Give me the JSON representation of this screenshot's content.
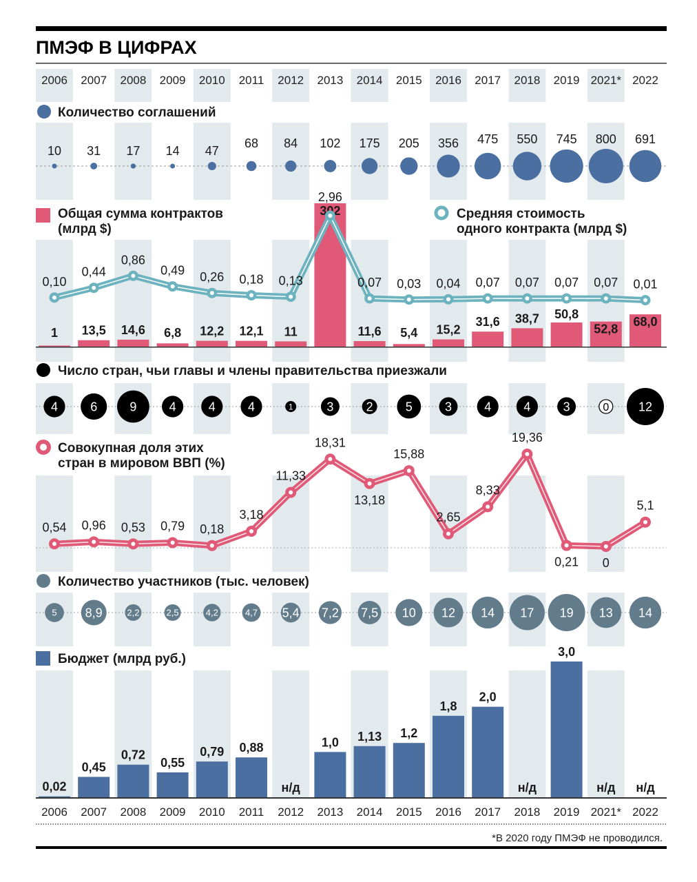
{
  "title": "ПМЭФ В ЦИФРАХ",
  "footnote": "*В 2020 году ПМЭФ не проводился.",
  "colors": {
    "shade": "#e3eaed",
    "agreements": "#4a6fa0",
    "contracts_total": "#e05a78",
    "avg_contract": "#6cb2bf",
    "countries": "#000000",
    "gdp_share": "#e05a78",
    "participants": "#627c8c",
    "budget": "#4a6fa0"
  },
  "chart_data": {
    "type": "table",
    "title": "ПМЭФ В ЦИФРАХ",
    "categories": [
      "2006",
      "2007",
      "2008",
      "2009",
      "2010",
      "2011",
      "2012",
      "2013",
      "2014",
      "2015",
      "2016",
      "2017",
      "2018",
      "2019",
      "2021*",
      "2022"
    ],
    "shaded_categories": [
      "2006",
      "2008",
      "2010",
      "2012",
      "2014",
      "2016",
      "2018",
      "2021*"
    ],
    "panels": [
      {
        "id": "agreements",
        "type": "bubble",
        "legend": "Количество соглашений",
        "values": [
          10,
          31,
          17,
          14,
          47,
          68,
          84,
          102,
          175,
          205,
          356,
          475,
          550,
          745,
          800,
          691
        ],
        "labels": [
          "10",
          "31",
          "17",
          "14",
          "47",
          "68",
          "84",
          "102",
          "175",
          "205",
          "356",
          "475",
          "550",
          "745",
          "800",
          "691"
        ]
      },
      {
        "id": "contracts",
        "type": "bar+line",
        "bar_legend": "Общая сумма контрактов (млрд $)",
        "bar_values": [
          1,
          13.5,
          14.6,
          6.8,
          12.2,
          12.1,
          11,
          302,
          11.6,
          5.4,
          15.2,
          31.6,
          38.7,
          50.8,
          52.8,
          68.0
        ],
        "bar_labels": [
          "1",
          "13,5",
          "14,6",
          "6,8",
          "12,2",
          "12,1",
          "11",
          "302",
          "11,6",
          "5,4",
          "15,2",
          "31,6",
          "38,7",
          "50,8",
          "52,8",
          "68,0"
        ],
        "line_legend": "Средняя стоимость одного контракта (млрд $)",
        "line_values": [
          0.1,
          0.44,
          0.86,
          0.49,
          0.26,
          0.18,
          0.13,
          2.96,
          0.07,
          0.03,
          0.04,
          0.07,
          0.07,
          0.07,
          0.07,
          0.01
        ],
        "line_labels": [
          "0,10",
          "0,44",
          "0,86",
          "0,49",
          "0,26",
          "0,18",
          "0,13",
          "2,96",
          "0,07",
          "0,03",
          "0,04",
          "0,07",
          "0,07",
          "0,07",
          "0,07",
          "0,01"
        ]
      },
      {
        "id": "countries",
        "type": "bubble",
        "legend": "Число стран, чьи главы и члены правительства приезжали",
        "values": [
          4,
          6,
          9,
          4,
          4,
          4,
          1,
          3,
          2,
          5,
          3,
          4,
          4,
          3,
          0,
          12
        ],
        "labels": [
          "4",
          "6",
          "9",
          "4",
          "4",
          "4",
          "1",
          "3",
          "2",
          "5",
          "3",
          "4",
          "4",
          "3",
          "0",
          "12"
        ]
      },
      {
        "id": "gdp_share",
        "type": "line",
        "legend": "Совокупная доля этих стран в мировом ВВП (%)",
        "values": [
          0.54,
          0.96,
          0.53,
          0.79,
          0.18,
          3.18,
          11.33,
          18.31,
          13.18,
          15.88,
          2.65,
          8.33,
          19.36,
          0.21,
          0,
          5.1
        ],
        "labels": [
          "0,54",
          "0,96",
          "0,53",
          "0,79",
          "0,18",
          "3,18",
          "11,33",
          "18,31",
          "13,18",
          "15,88",
          "2,65",
          "8,33",
          "19,36",
          "0,21",
          "0",
          "5,1"
        ],
        "label_below": [
          false,
          false,
          false,
          false,
          false,
          false,
          false,
          false,
          true,
          false,
          false,
          false,
          false,
          true,
          true,
          false
        ]
      },
      {
        "id": "participants",
        "type": "bubble",
        "legend": "Количество участников (тыс. человек)",
        "values": [
          5,
          8.9,
          2.2,
          2.5,
          4.2,
          4.7,
          5.4,
          7.2,
          7.5,
          10,
          12,
          14,
          17,
          19,
          13,
          14
        ],
        "labels": [
          "5",
          "8,9",
          "2,2",
          "2,5",
          "4,2",
          "4,7",
          "5,4",
          "7,2",
          "7,5",
          "10",
          "12",
          "14",
          "17",
          "19",
          "13",
          "14"
        ]
      },
      {
        "id": "budget",
        "type": "bar",
        "legend": "Бюджет (млрд руб.)",
        "values": [
          0.02,
          0.45,
          0.72,
          0.55,
          0.79,
          0.88,
          null,
          1.0,
          1.13,
          1.2,
          1.8,
          2.0,
          null,
          3.0,
          null,
          null
        ],
        "labels": [
          "0,02",
          "0,45",
          "0,72",
          "0,55",
          "0,79",
          "0,88",
          "н/д",
          "1,0",
          "1,13",
          "1,2",
          "1,8",
          "2,0",
          "н/д",
          "3,0",
          "н/д",
          "н/д"
        ],
        "ylim": [
          0,
          3.0
        ]
      }
    ]
  }
}
